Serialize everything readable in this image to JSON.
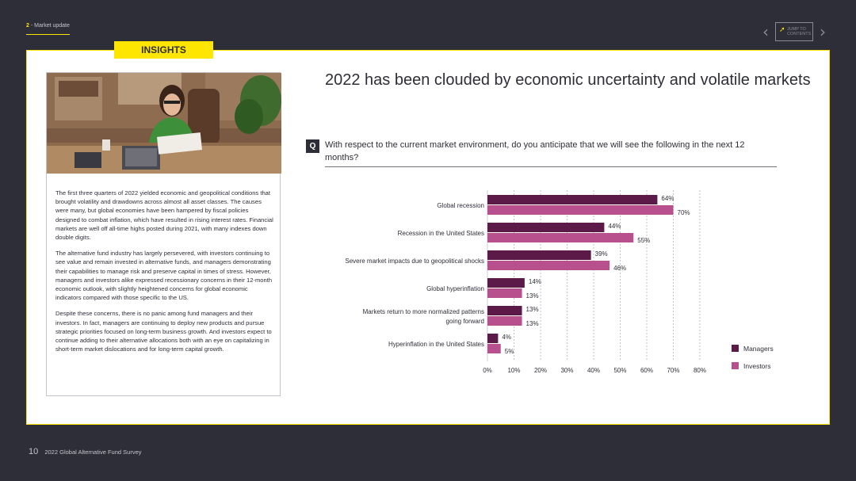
{
  "header": {
    "section_number": "2",
    "section_title": "- Market update",
    "jump_line1": "JUMP TO",
    "jump_line2": "CONTENTS"
  },
  "tag": "INSIGHTS",
  "left": {
    "paragraphs": [
      "The first three quarters of 2022 yielded economic and geopolitical conditions that brought volatility and drawdowns across almost all asset classes. The causes were many, but global economies have been hampered by fiscal policies designed to combat inflation, which have resulted in rising interest rates. Financial markets are well off all-time highs posted during 2021, with many indexes down double digits.",
      "The alternative fund industry has largely persevered, with investors continuing to see value and remain invested in alternative funds, and managers demonstrating their capabilities to manage risk and preserve capital in times of stress. However, managers and investors alike expressed recessionary concerns in their 12-month economic outlook, with slightly heightened concerns for global economic indicators compared with those specific to the US.",
      "Despite these concerns, there is no panic among fund managers and their investors. In fact, managers are continuing to deploy new products and pursue strategic priorities focused on long-term business growth. And investors expect to continue adding to their alternative allocations both with an eye on capitalizing in short-term market dislocations and for long-term capital growth."
    ]
  },
  "headline": "2022 has been clouded by economic uncertainty and volatile markets",
  "question_badge": "Q",
  "question": "With respect to the current market environment, do you anticipate that we will see the following in the next 12 months?",
  "chart_data": {
    "type": "bar",
    "orientation": "horizontal",
    "categories": [
      [
        "Global recession"
      ],
      [
        "Recession in the United States"
      ],
      [
        "Severe market impacts due to geopolitical shocks"
      ],
      [
        "Global hyperinflation"
      ],
      [
        "Markets return to more normalized patterns",
        "going forward"
      ],
      [
        "Hyperinflation in the United States"
      ]
    ],
    "series": [
      {
        "name": "Managers",
        "color": "#5c1a48",
        "values": [
          64,
          44,
          39,
          14,
          13,
          4
        ]
      },
      {
        "name": "Investors",
        "color": "#b9508e",
        "values": [
          70,
          55,
          46,
          13,
          13,
          5
        ]
      }
    ],
    "xlim": [
      0,
      80
    ],
    "xticks": [
      "0%",
      "10%",
      "20%",
      "30%",
      "40%",
      "50%",
      "60%",
      "70%",
      "80%"
    ],
    "value_suffix": "%",
    "grid": true,
    "legend_position": "right"
  },
  "footer": {
    "page_number": "10",
    "title": "2022 Global Alternative Fund Survey"
  }
}
